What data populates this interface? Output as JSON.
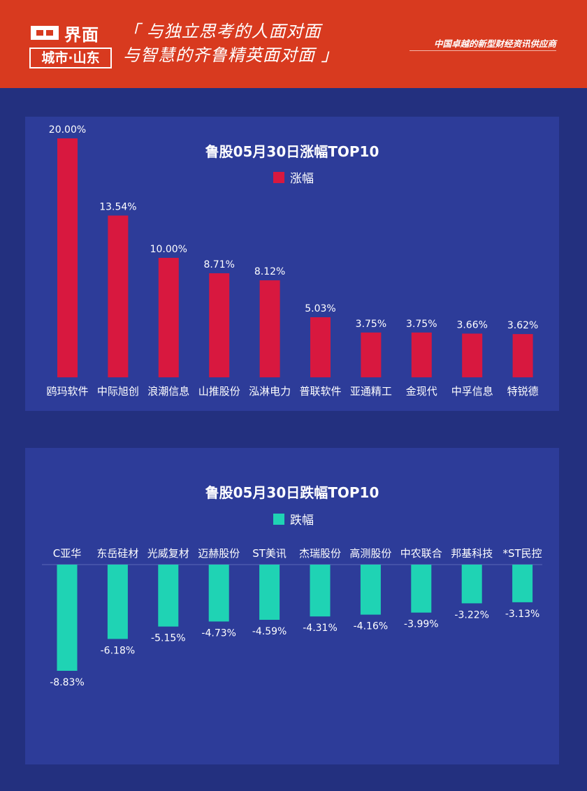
{
  "header": {
    "logo_main": "界面",
    "logo_sub": "城市·山东",
    "slogan_line1": "「 与独立思考的人面对面",
    "slogan_line2": "与智慧的齐鲁精英面对面 」",
    "tagline": "中国卓越的新型财经资讯供应商"
  },
  "colors": {
    "header_bg": "#d83a1f",
    "page_bg": "#23307f",
    "panel_bg": "#2d3c99",
    "gain_bar": "#d8183f",
    "loss_bar": "#1fd3b4"
  },
  "chart_data": [
    {
      "type": "bar",
      "title": "鲁股05月30日涨幅TOP10",
      "legend": [
        "涨幅"
      ],
      "categories": [
        "鸥玛软件",
        "中际旭创",
        "浪潮信息",
        "山推股份",
        "泓淋电力",
        "普联软件",
        "亚通精工",
        "金现代",
        "中孚信息",
        "特锐德"
      ],
      "series": [
        {
          "name": "涨幅",
          "values": [
            20.0,
            13.54,
            10.0,
            8.71,
            8.12,
            5.03,
            3.75,
            3.75,
            3.66,
            3.62
          ],
          "labels": [
            "20.00%",
            "13.54%",
            "10.00%",
            "8.71%",
            "8.12%",
            "5.03%",
            "3.75%",
            "3.75%",
            "3.66%",
            "3.62%"
          ],
          "color": "#d8183f"
        }
      ],
      "ylim": [
        0,
        20
      ]
    },
    {
      "type": "bar",
      "title": "鲁股05月30日跌幅TOP10",
      "legend": [
        "跌幅"
      ],
      "categories": [
        "C亚华",
        "东岳硅材",
        "光威复材",
        "迈赫股份",
        "ST美讯",
        "杰瑞股份",
        "高测股份",
        "中农联合",
        "邦基科技",
        "*ST民控"
      ],
      "series": [
        {
          "name": "跌幅",
          "values": [
            -8.83,
            -6.18,
            -5.15,
            -4.73,
            -4.59,
            -4.31,
            -4.16,
            -3.99,
            -3.22,
            -3.13
          ],
          "labels": [
            "-8.83%",
            "-6.18%",
            "-5.15%",
            "-4.73%",
            "-4.59%",
            "-4.31%",
            "-4.16%",
            "-3.99%",
            "-3.22%",
            "-3.13%"
          ],
          "color": "#1fd3b4"
        }
      ],
      "ylim": [
        -8.83,
        0
      ]
    }
  ]
}
